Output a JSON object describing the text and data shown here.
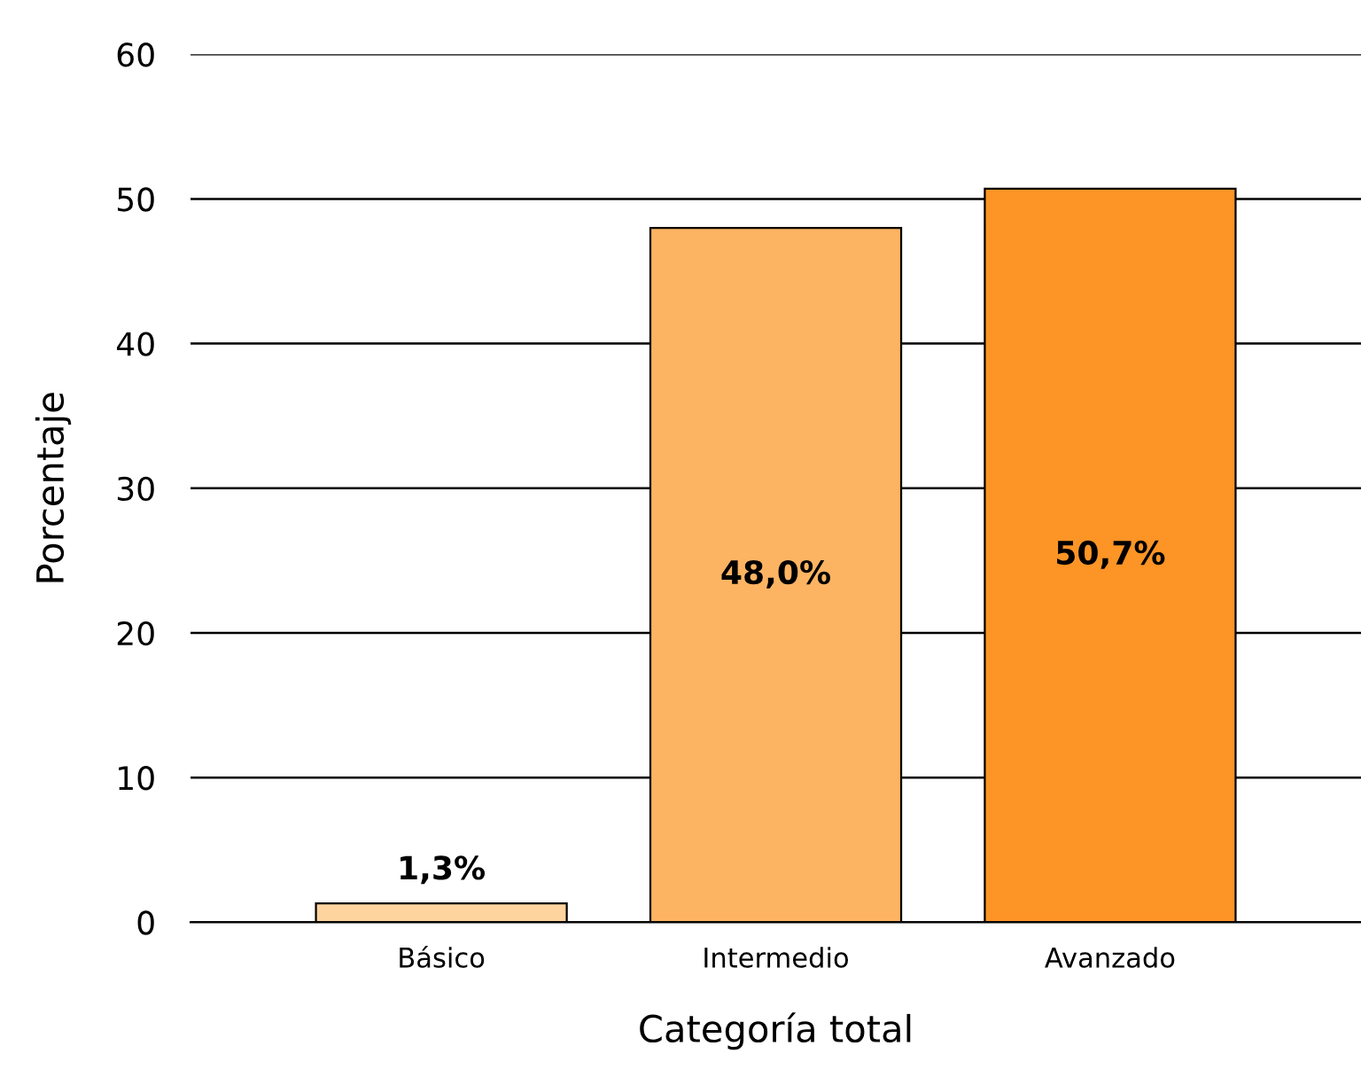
{
  "chart_data": {
    "type": "bar",
    "xlabel": "Categoría total",
    "ylabel": "Porcentaje",
    "categories": [
      "Básico",
      "Intermedio",
      "Avanzado"
    ],
    "values": [
      1.3,
      48.0,
      50.7
    ],
    "colors": [
      "#fdd49e",
      "#fdb462",
      "#fd9426"
    ],
    "value_labels": [
      "1,3%",
      "48,0%",
      "50,7%"
    ],
    "ylim": [
      0,
      60
    ],
    "yticks": [
      0,
      10,
      20,
      30,
      40,
      50,
      60
    ],
    "grid": "y",
    "legend": false
  }
}
